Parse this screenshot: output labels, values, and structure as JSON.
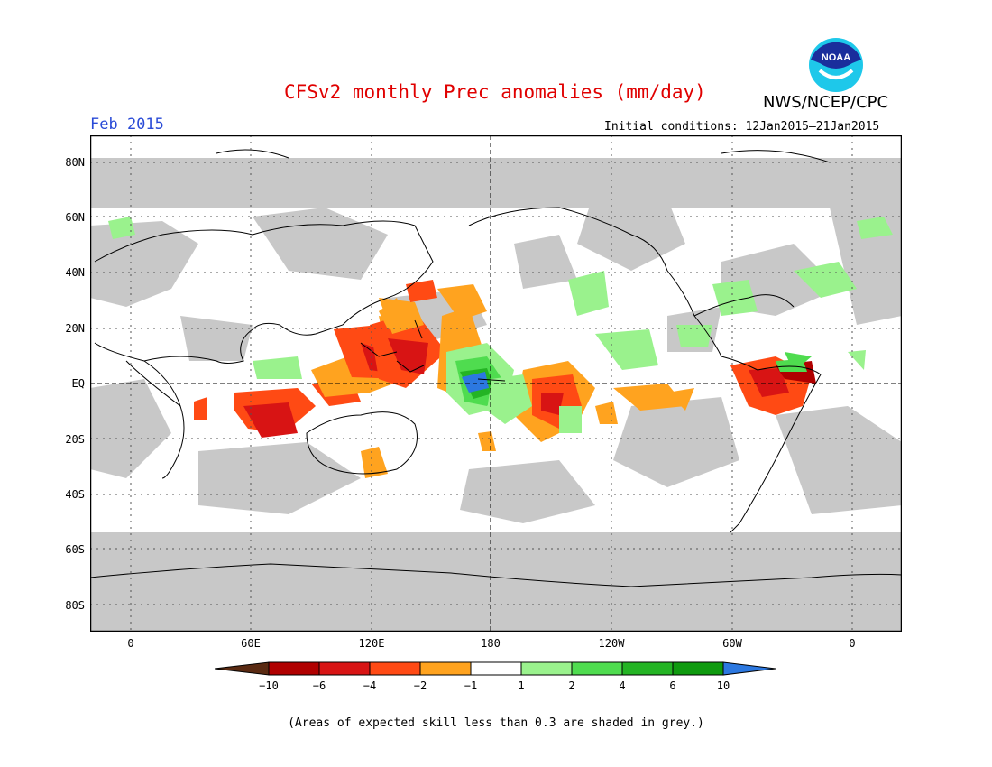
{
  "title": "CFSv2 monthly Prec anomalies (mm/day)",
  "organization": "NWS/NCEP/CPC",
  "logo_text": "NOAA",
  "valid_month": "Feb 2015",
  "initial_conditions": "Initial conditions: 12Jan2015–21Jan2015",
  "lat_labels": [
    "80N",
    "60N",
    "40N",
    "20N",
    "EQ",
    "20S",
    "40S",
    "60S",
    "80S"
  ],
  "lon_labels": [
    "0",
    "60E",
    "120E",
    "180",
    "120W",
    "60W",
    "0"
  ],
  "legend": {
    "labels": [
      "−10",
      "−6",
      "−4",
      "−2",
      "−1",
      "1",
      "2",
      "4",
      "6",
      "10"
    ],
    "colors": [
      "#5a2a12",
      "#b00000",
      "#d81414",
      "#ff4a14",
      "#ffa31f",
      "#ffffff",
      "#9af28d",
      "#4fdc4f",
      "#24b424",
      "#0f9a0f",
      "#2c78e0"
    ]
  },
  "footnote": "(Areas of expected skill less than 0.3 are shaded in grey.)",
  "colors": {
    "skill_grey": "#c8c8c8",
    "title_red": "#e00000",
    "month_blue": "#2a4bd7"
  }
}
